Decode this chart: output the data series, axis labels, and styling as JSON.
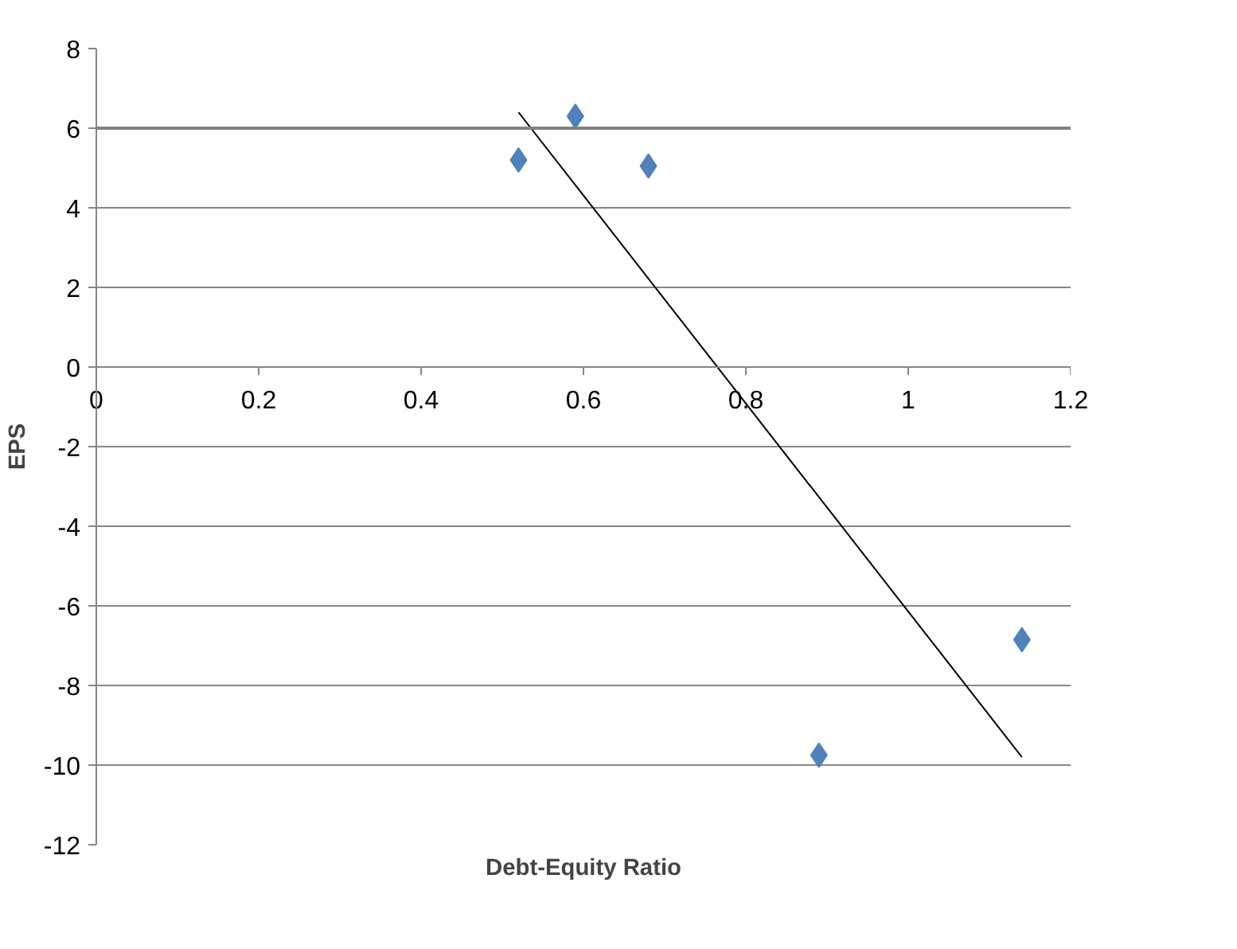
{
  "chart_data": {
    "type": "scatter",
    "xlabel": "Debt-Equity Ratio",
    "ylabel": "EPS",
    "series": [
      {
        "color": "#4f81bd",
        "marker": "diamond",
        "x": [
          0.52,
          0.59,
          0.68,
          0.89,
          1.14
        ],
        "values": [
          5.2,
          6.3,
          5.05,
          -9.75,
          -6.85
        ]
      },
      {
        "type": "line",
        "color": "#000000",
        "x": [
          0.52,
          1.14
        ],
        "values": [
          6.4,
          -9.8
        ]
      }
    ],
    "ref_lines": [
      {
        "axis": "y",
        "value": 6,
        "color": "#808080"
      }
    ],
    "xlim": [
      0,
      1.2
    ],
    "ylim": [
      -12,
      8
    ],
    "xticks": [
      0,
      0.2,
      0.4,
      0.6,
      0.8,
      1,
      1.2
    ],
    "yticks": [
      -12,
      -10,
      -8,
      -6,
      -4,
      -2,
      0,
      2,
      4,
      6,
      8
    ],
    "grid": "y"
  }
}
